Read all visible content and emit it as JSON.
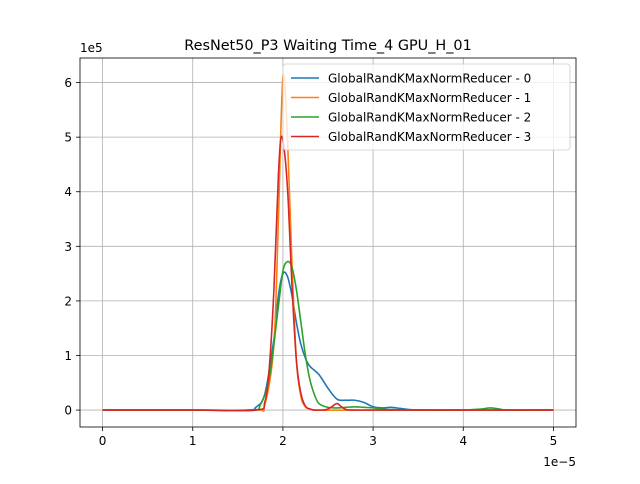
{
  "chart_data": {
    "type": "line",
    "title": "ResNet50_P3 Waiting Time_4 GPU_H_01",
    "xlabel": "",
    "ylabel": "",
    "x_offset_label": "1e−5",
    "y_offset_label": "1e5",
    "xlim": [
      -2.5,
      52.5
    ],
    "ylim": [
      -0.31,
      6.45
    ],
    "xticks": [
      0,
      10,
      20,
      30,
      40,
      50
    ],
    "xtick_labels": [
      "0",
      "1",
      "2",
      "3",
      "4",
      "5"
    ],
    "yticks": [
      0,
      1,
      2,
      3,
      4,
      5,
      6
    ],
    "ytick_labels": [
      "0",
      "1",
      "2",
      "3",
      "4",
      "5",
      "6"
    ],
    "grid": true,
    "legend_position": "upper right",
    "series": [
      {
        "name": "GlobalRandKMaxNormReducer - 0",
        "color": "#1f77b4",
        "x": [
          0,
          10,
          16,
          17,
          18,
          19,
          19.5,
          20,
          20.5,
          21,
          21.5,
          22,
          22.5,
          23,
          24,
          25,
          26,
          27,
          28,
          29,
          30,
          31,
          32,
          33,
          34,
          36,
          40,
          50
        ],
        "y": [
          0,
          0,
          0,
          0.05,
          0.3,
          1.3,
          2.1,
          2.5,
          2.45,
          2.1,
          1.6,
          1.2,
          0.95,
          0.8,
          0.65,
          0.4,
          0.2,
          0.18,
          0.18,
          0.14,
          0.06,
          0.04,
          0.05,
          0.03,
          0.01,
          0,
          0,
          0
        ]
      },
      {
        "name": "GlobalRandKMaxNormReducer - 1",
        "color": "#ff7f0e",
        "x": [
          0,
          10,
          17,
          18,
          19,
          19.5,
          20,
          20.5,
          21,
          21.5,
          22,
          22.5,
          23,
          24,
          30,
          50
        ],
        "y": [
          0,
          0,
          0,
          0.1,
          1.2,
          3.5,
          6.1,
          5.0,
          2.7,
          0.9,
          0.25,
          0.06,
          0.02,
          0,
          0,
          0
        ]
      },
      {
        "name": "GlobalRandKMaxNormReducer - 2",
        "color": "#2ca02c",
        "x": [
          0,
          10,
          16.5,
          17.5,
          18.5,
          19.5,
          20,
          20.5,
          21,
          21.5,
          22,
          22.5,
          23,
          23.5,
          24,
          25,
          26,
          27,
          28,
          29,
          30,
          31,
          32,
          35,
          40,
          41,
          42,
          43,
          44,
          45,
          50
        ],
        "y": [
          0,
          0,
          0,
          0.1,
          0.6,
          1.9,
          2.55,
          2.72,
          2.62,
          2.2,
          1.6,
          1.0,
          0.55,
          0.28,
          0.12,
          0.05,
          0.04,
          0.05,
          0.06,
          0.05,
          0.04,
          0.02,
          0.01,
          0,
          0,
          0.01,
          0.02,
          0.04,
          0.02,
          0,
          0
        ]
      },
      {
        "name": "GlobalRandKMaxNormReducer - 3",
        "color": "#d62728",
        "x": [
          0,
          10,
          17,
          18,
          18.5,
          19,
          19.5,
          19.8,
          20.2,
          20.6,
          21,
          21.5,
          22,
          22.5,
          23,
          23.5,
          24,
          24.5,
          25,
          25.5,
          26,
          26.5,
          27,
          28,
          30,
          50
        ],
        "y": [
          0,
          0,
          0,
          0.15,
          0.8,
          2.2,
          4.3,
          5.0,
          4.7,
          3.8,
          2.3,
          0.9,
          0.3,
          0.07,
          0.02,
          0,
          0,
          0,
          0.02,
          0.07,
          0.12,
          0.06,
          0.01,
          0,
          0,
          0
        ]
      }
    ]
  }
}
